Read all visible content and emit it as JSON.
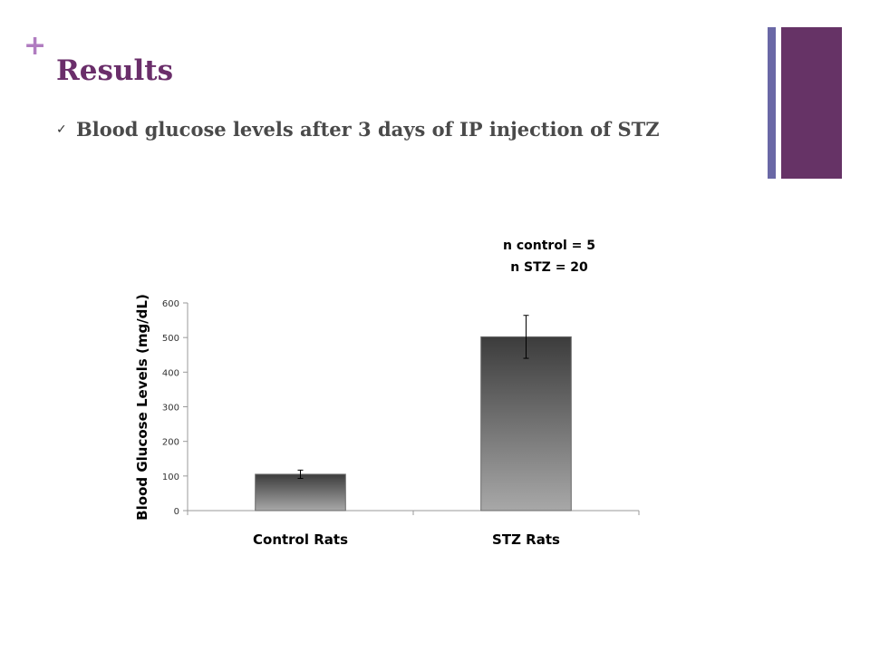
{
  "slide": {
    "plus_glyph": "+",
    "title": "Results",
    "bullet_check": "✓",
    "bullet_text": "Blood glucose levels after 3 days of IP injection of STZ"
  },
  "colors": {
    "title": "#6a2e6a",
    "plus": "#b07cc0",
    "accent_thin": "#6a68a6",
    "accent_thick": "#663366",
    "bar_top": "#3c3c3c",
    "bar_bottom": "#a8a8a8"
  },
  "chart_data": {
    "type": "bar",
    "categories": [
      "Control Rats",
      "STZ Rats"
    ],
    "values": [
      105,
      502
    ],
    "error": [
      12,
      62
    ],
    "ylabel": "Blood Glucose Levels (mg/dL)",
    "xlabel": "",
    "ylim": [
      0,
      600
    ],
    "yticks": [
      0,
      100,
      200,
      300,
      400,
      500,
      600
    ],
    "grid": false,
    "legend": false,
    "annotations": [
      "n control = 5",
      "n STZ = 20"
    ]
  }
}
